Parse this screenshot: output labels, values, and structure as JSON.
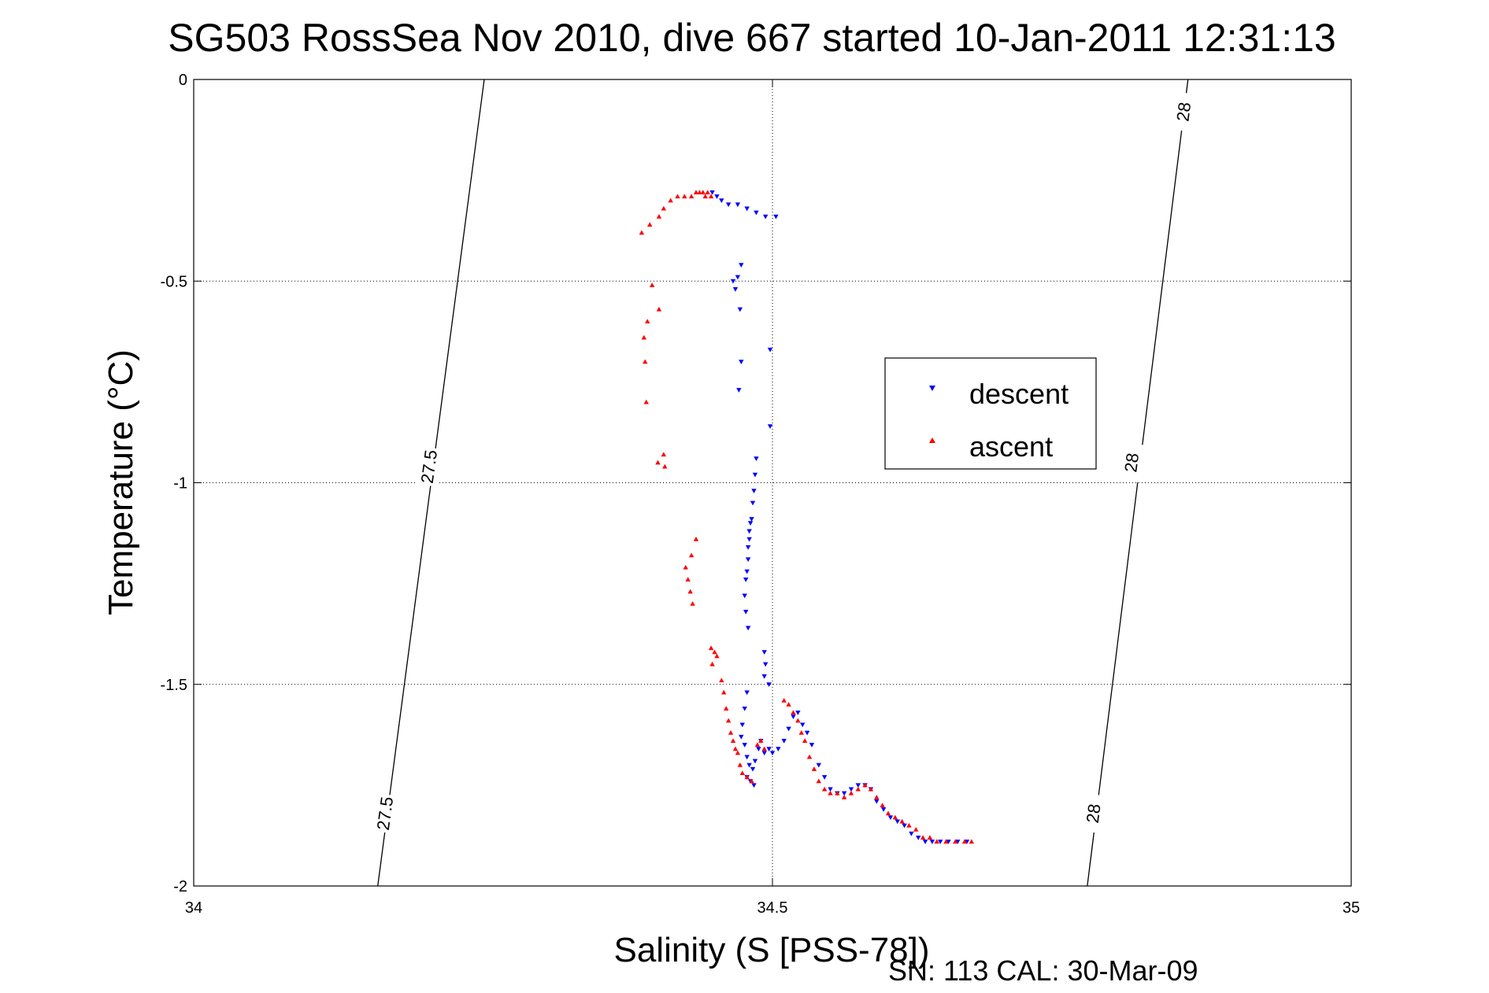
{
  "chart_data": {
    "type": "scatter",
    "title": "SG503 RossSea Nov 2010, dive 667 started 10-Jan-2011 12:31:13",
    "xlabel": "Salinity (S [PSS-78])",
    "ylabel": "Temperature (°C)",
    "xlim": [
      34,
      35
    ],
    "ylim": [
      -2,
      0
    ],
    "xticks": [
      {
        "value": 34,
        "label": "34"
      },
      {
        "value": 34.5,
        "label": "34.5"
      },
      {
        "value": 35,
        "label": "35"
      }
    ],
    "yticks": [
      {
        "value": 0,
        "label": "0"
      },
      {
        "value": -0.5,
        "label": "-0.5"
      },
      {
        "value": -1,
        "label": "-1"
      },
      {
        "value": -1.5,
        "label": "-1.5"
      },
      {
        "value": -2,
        "label": "-2"
      }
    ],
    "grid": true,
    "legend": {
      "position": "right-center"
    },
    "footer": "SN: 113  CAL: 30-Mar-09",
    "contours": [
      {
        "label": "27.5",
        "points": [
          [
            34.251,
            0
          ],
          [
            34.159,
            -2
          ]
        ],
        "label_positions": [
          [
            34.203,
            -0.96
          ],
          [
            34.165,
            -1.82
          ]
        ]
      },
      {
        "label": "28",
        "points": [
          [
            34.859,
            0
          ],
          [
            34.772,
            -2
          ]
        ],
        "label_positions": [
          [
            34.855,
            -0.08
          ],
          [
            34.81,
            -0.95
          ],
          [
            34.777,
            -1.82
          ]
        ]
      }
    ],
    "series": [
      {
        "name": "descent",
        "color": "#0000ff",
        "marker": "triangle-down",
        "points": [
          [
            34.448,
            -0.28
          ],
          [
            34.452,
            -0.29
          ],
          [
            34.456,
            -0.3
          ],
          [
            34.462,
            -0.31
          ],
          [
            34.47,
            -0.31
          ],
          [
            34.478,
            -0.32
          ],
          [
            34.486,
            -0.33
          ],
          [
            34.494,
            -0.34
          ],
          [
            34.503,
            -0.34
          ],
          [
            34.473,
            -0.46
          ],
          [
            34.47,
            -0.49
          ],
          [
            34.466,
            -0.5
          ],
          [
            34.468,
            -0.52
          ],
          [
            34.472,
            -0.57
          ],
          [
            34.498,
            -0.67
          ],
          [
            34.473,
            -0.7
          ],
          [
            34.471,
            -0.77
          ],
          [
            34.498,
            -0.86
          ],
          [
            34.486,
            -0.94
          ],
          [
            34.485,
            -0.98
          ],
          [
            34.484,
            -1.02
          ],
          [
            34.483,
            -1.05
          ],
          [
            34.482,
            -1.09
          ],
          [
            34.481,
            -1.1
          ],
          [
            34.48,
            -1.12
          ],
          [
            34.48,
            -1.14
          ],
          [
            34.479,
            -1.16
          ],
          [
            34.479,
            -1.19
          ],
          [
            34.478,
            -1.22
          ],
          [
            34.477,
            -1.24
          ],
          [
            34.476,
            -1.28
          ],
          [
            34.477,
            -1.32
          ],
          [
            34.479,
            -1.36
          ],
          [
            34.493,
            -1.42
          ],
          [
            34.494,
            -1.45
          ],
          [
            34.493,
            -1.48
          ],
          [
            34.497,
            -1.5
          ],
          [
            34.478,
            -1.52
          ],
          [
            34.476,
            -1.56
          ],
          [
            34.474,
            -1.6
          ],
          [
            34.473,
            -1.63
          ],
          [
            34.476,
            -1.65
          ],
          [
            34.478,
            -1.68
          ],
          [
            34.48,
            -1.7
          ],
          [
            34.483,
            -1.71
          ],
          [
            34.485,
            -1.69
          ],
          [
            34.488,
            -1.66
          ],
          [
            34.49,
            -1.64
          ],
          [
            34.493,
            -1.67
          ],
          [
            34.497,
            -1.66
          ],
          [
            34.5,
            -1.67
          ],
          [
            34.505,
            -1.66
          ],
          [
            34.51,
            -1.64
          ],
          [
            34.514,
            -1.61
          ],
          [
            34.518,
            -1.58
          ],
          [
            34.522,
            -1.57
          ],
          [
            34.526,
            -1.6
          ],
          [
            34.53,
            -1.62
          ],
          [
            34.534,
            -1.65
          ],
          [
            34.54,
            -1.7
          ],
          [
            34.545,
            -1.73
          ],
          [
            34.55,
            -1.76
          ],
          [
            34.556,
            -1.77
          ],
          [
            34.562,
            -1.77
          ],
          [
            34.568,
            -1.76
          ],
          [
            34.574,
            -1.75
          ],
          [
            34.58,
            -1.75
          ],
          [
            34.585,
            -1.76
          ],
          [
            34.59,
            -1.79
          ],
          [
            34.596,
            -1.81
          ],
          [
            34.602,
            -1.83
          ],
          [
            34.608,
            -1.84
          ],
          [
            34.614,
            -1.85
          ],
          [
            34.62,
            -1.87
          ],
          [
            34.626,
            -1.88
          ],
          [
            34.632,
            -1.89
          ],
          [
            34.638,
            -1.89
          ],
          [
            34.645,
            -1.89
          ],
          [
            34.652,
            -1.89
          ],
          [
            34.66,
            -1.89
          ],
          [
            34.668,
            -1.89
          ],
          [
            34.478,
            -1.73
          ],
          [
            34.481,
            -1.74
          ],
          [
            34.484,
            -1.75
          ]
        ]
      },
      {
        "name": "ascent",
        "color": "#ff0000",
        "marker": "triangle-up",
        "points": [
          [
            34.387,
            -0.38
          ],
          [
            34.394,
            -0.36
          ],
          [
            34.402,
            -0.34
          ],
          [
            34.406,
            -0.32
          ],
          [
            34.412,
            -0.3
          ],
          [
            34.418,
            -0.29
          ],
          [
            34.424,
            -0.29
          ],
          [
            34.43,
            -0.29
          ],
          [
            34.434,
            -0.28
          ],
          [
            34.437,
            -0.28
          ],
          [
            34.44,
            -0.28
          ],
          [
            34.442,
            -0.29
          ],
          [
            34.444,
            -0.28
          ],
          [
            34.447,
            -0.29
          ],
          [
            34.396,
            -0.51
          ],
          [
            34.402,
            -0.57
          ],
          [
            34.392,
            -0.6
          ],
          [
            34.389,
            -0.64
          ],
          [
            34.39,
            -0.7
          ],
          [
            34.391,
            -0.8
          ],
          [
            34.406,
            -0.93
          ],
          [
            34.401,
            -0.95
          ],
          [
            34.407,
            -0.96
          ],
          [
            34.434,
            -1.14
          ],
          [
            34.43,
            -1.18
          ],
          [
            34.425,
            -1.21
          ],
          [
            34.427,
            -1.24
          ],
          [
            34.429,
            -1.27
          ],
          [
            34.431,
            -1.3
          ],
          [
            34.447,
            -1.41
          ],
          [
            34.45,
            -1.42
          ],
          [
            34.452,
            -1.43
          ],
          [
            34.448,
            -1.45
          ],
          [
            34.456,
            -1.49
          ],
          [
            34.458,
            -1.52
          ],
          [
            34.46,
            -1.56
          ],
          [
            34.462,
            -1.59
          ],
          [
            34.464,
            -1.62
          ],
          [
            34.466,
            -1.64
          ],
          [
            34.468,
            -1.66
          ],
          [
            34.47,
            -1.67
          ],
          [
            34.472,
            -1.7
          ],
          [
            34.474,
            -1.72
          ],
          [
            34.478,
            -1.73
          ],
          [
            34.482,
            -1.74
          ],
          [
            34.487,
            -1.65
          ],
          [
            34.49,
            -1.64
          ],
          [
            34.493,
            -1.66
          ],
          [
            34.51,
            -1.54
          ],
          [
            34.514,
            -1.55
          ],
          [
            34.518,
            -1.57
          ],
          [
            34.522,
            -1.59
          ],
          [
            34.525,
            -1.62
          ],
          [
            34.528,
            -1.64
          ],
          [
            34.532,
            -1.68
          ],
          [
            34.536,
            -1.71
          ],
          [
            34.54,
            -1.74
          ],
          [
            34.545,
            -1.76
          ],
          [
            34.55,
            -1.77
          ],
          [
            34.556,
            -1.77
          ],
          [
            34.562,
            -1.78
          ],
          [
            34.568,
            -1.77
          ],
          [
            34.574,
            -1.76
          ],
          [
            34.58,
            -1.75
          ],
          [
            34.585,
            -1.76
          ],
          [
            34.59,
            -1.78
          ],
          [
            34.595,
            -1.8
          ],
          [
            34.6,
            -1.82
          ],
          [
            34.606,
            -1.83
          ],
          [
            34.612,
            -1.84
          ],
          [
            34.618,
            -1.85
          ],
          [
            34.624,
            -1.86
          ],
          [
            34.63,
            -1.88
          ],
          [
            34.636,
            -1.88
          ],
          [
            34.642,
            -1.89
          ],
          [
            34.65,
            -1.89
          ],
          [
            34.658,
            -1.89
          ],
          [
            34.666,
            -1.89
          ],
          [
            34.672,
            -1.89
          ]
        ]
      }
    ]
  }
}
